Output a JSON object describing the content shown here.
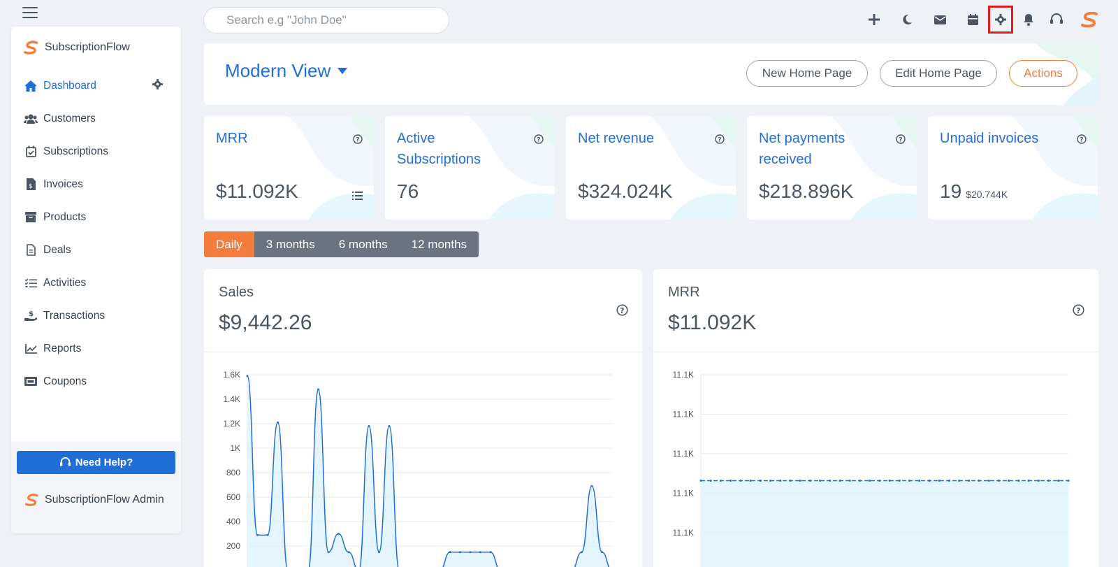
{
  "topbar": {
    "search_placeholder": "Search e.g \"John Doe\"",
    "icons": [
      "plus-icon",
      "moon-icon",
      "mail-icon",
      "calendar-icon",
      "settings-icon",
      "bell-icon",
      "headset-icon",
      "brand-logo-icon"
    ],
    "highlighted_icon": "settings-icon"
  },
  "sidebar": {
    "brand": "SubscriptionFlow",
    "items": [
      {
        "label": "Dashboard",
        "icon": "home-icon",
        "active": true
      },
      {
        "label": "Customers",
        "icon": "users-icon"
      },
      {
        "label": "Subscriptions",
        "icon": "calendar-check-icon"
      },
      {
        "label": "Invoices",
        "icon": "invoice-icon"
      },
      {
        "label": "Products",
        "icon": "archive-icon"
      },
      {
        "label": "Deals",
        "icon": "document-icon"
      },
      {
        "label": "Activities",
        "icon": "checklist-icon"
      },
      {
        "label": "Transactions",
        "icon": "hand-dollar-icon"
      },
      {
        "label": "Reports",
        "icon": "line-chart-icon"
      },
      {
        "label": "Coupons",
        "icon": "ticket-icon"
      }
    ],
    "help_label": "Need Help?",
    "admin_label": "SubscriptionFlow Admin"
  },
  "header": {
    "view_title": "Modern View",
    "buttons": {
      "new_home": "New Home Page",
      "edit_home": "Edit Home Page",
      "actions": "Actions"
    }
  },
  "kpis": [
    {
      "title": "MRR",
      "value": "$11.092K",
      "sub": ""
    },
    {
      "title": "Active Subscriptions",
      "value": "76",
      "sub": ""
    },
    {
      "title": "Net revenue",
      "value": "$324.024K",
      "sub": ""
    },
    {
      "title": "Net payments received",
      "value": "$218.896K",
      "sub": ""
    },
    {
      "title": "Unpaid invoices",
      "value": "19",
      "sub": "$20.744K"
    }
  ],
  "periods": [
    "Daily",
    "3 months",
    "6 months",
    "12 months"
  ],
  "active_period": "Daily",
  "colors": {
    "primary": "#1f6fd6",
    "accent": "#f47c3c",
    "highlight": "#e11d1d"
  },
  "charts": {
    "sales": {
      "title": "Sales",
      "value": "$9,442.26"
    },
    "mrr": {
      "title": "MRR",
      "value": "$11.092K"
    }
  },
  "chart_data": [
    {
      "type": "area",
      "title": "Sales",
      "yticks": [
        "1.6K",
        "1.4K",
        "1.2K",
        "1K",
        "800",
        "600",
        "400",
        "200"
      ],
      "ylim": [
        0,
        1600
      ],
      "values": [
        1590,
        290,
        290,
        1210,
        0,
        0,
        0,
        1480,
        150,
        300,
        150,
        0,
        1180,
        150,
        1180,
        0,
        0,
        0,
        0,
        0,
        150,
        150,
        150,
        150,
        150,
        0,
        0,
        0,
        0,
        0,
        0,
        0,
        0,
        150,
        690,
        150,
        0
      ]
    },
    {
      "type": "area",
      "title": "MRR",
      "yticks": [
        "11.1K",
        "11.1K",
        "11.1K",
        "11.1K",
        "11.1K"
      ],
      "ylim": [
        11060,
        11130
      ],
      "values": [
        11092,
        11092,
        11092,
        11092,
        11092,
        11092,
        11092,
        11092,
        11092,
        11092,
        11092,
        11092,
        11092,
        11092,
        11092,
        11092,
        11092,
        11092,
        11092,
        11092,
        11092,
        11092,
        11092,
        11092,
        11092,
        11092,
        11092,
        11092,
        11092,
        11092,
        11092,
        11092,
        11092,
        11092,
        11092,
        11092,
        11092,
        11092
      ]
    }
  ]
}
